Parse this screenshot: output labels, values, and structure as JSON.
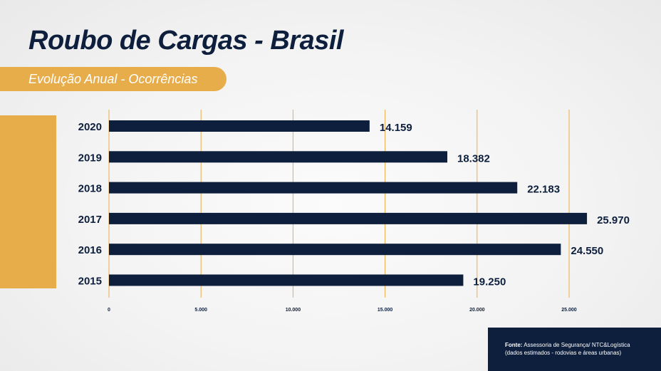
{
  "chart_data": {
    "type": "bar",
    "orientation": "horizontal",
    "title": "Roubo de Cargas - Brasil",
    "subtitle": "Evolução Anual - Ocorrências",
    "categories": [
      "2020",
      "2019",
      "2018",
      "2017",
      "2016",
      "2015"
    ],
    "values": [
      14159,
      18382,
      22183,
      25970,
      24550,
      19250
    ],
    "value_labels": [
      "14.159",
      "18.382",
      "22.183",
      "25.970",
      "24.550",
      "19.250"
    ],
    "xlim": [
      0,
      30000
    ],
    "x_ticks": [
      0,
      5000,
      10000,
      15000,
      20000,
      25000
    ],
    "x_tick_labels": [
      "0",
      "5.000",
      "10.000",
      "15.000",
      "20.000",
      "25.000"
    ],
    "grid": "vertical",
    "xlabel": "",
    "ylabel": ""
  },
  "source": {
    "label": "Fonte:",
    "text": "Assessoria de Segurança/ NTC&Logística",
    "note": "(dados estimados - rodovias e áreas urbanas)"
  },
  "colors": {
    "bar": "#0d1f3c",
    "accent": "#e8ad4b",
    "grid": "#e8ad4b",
    "text": "#0d1f3c"
  }
}
